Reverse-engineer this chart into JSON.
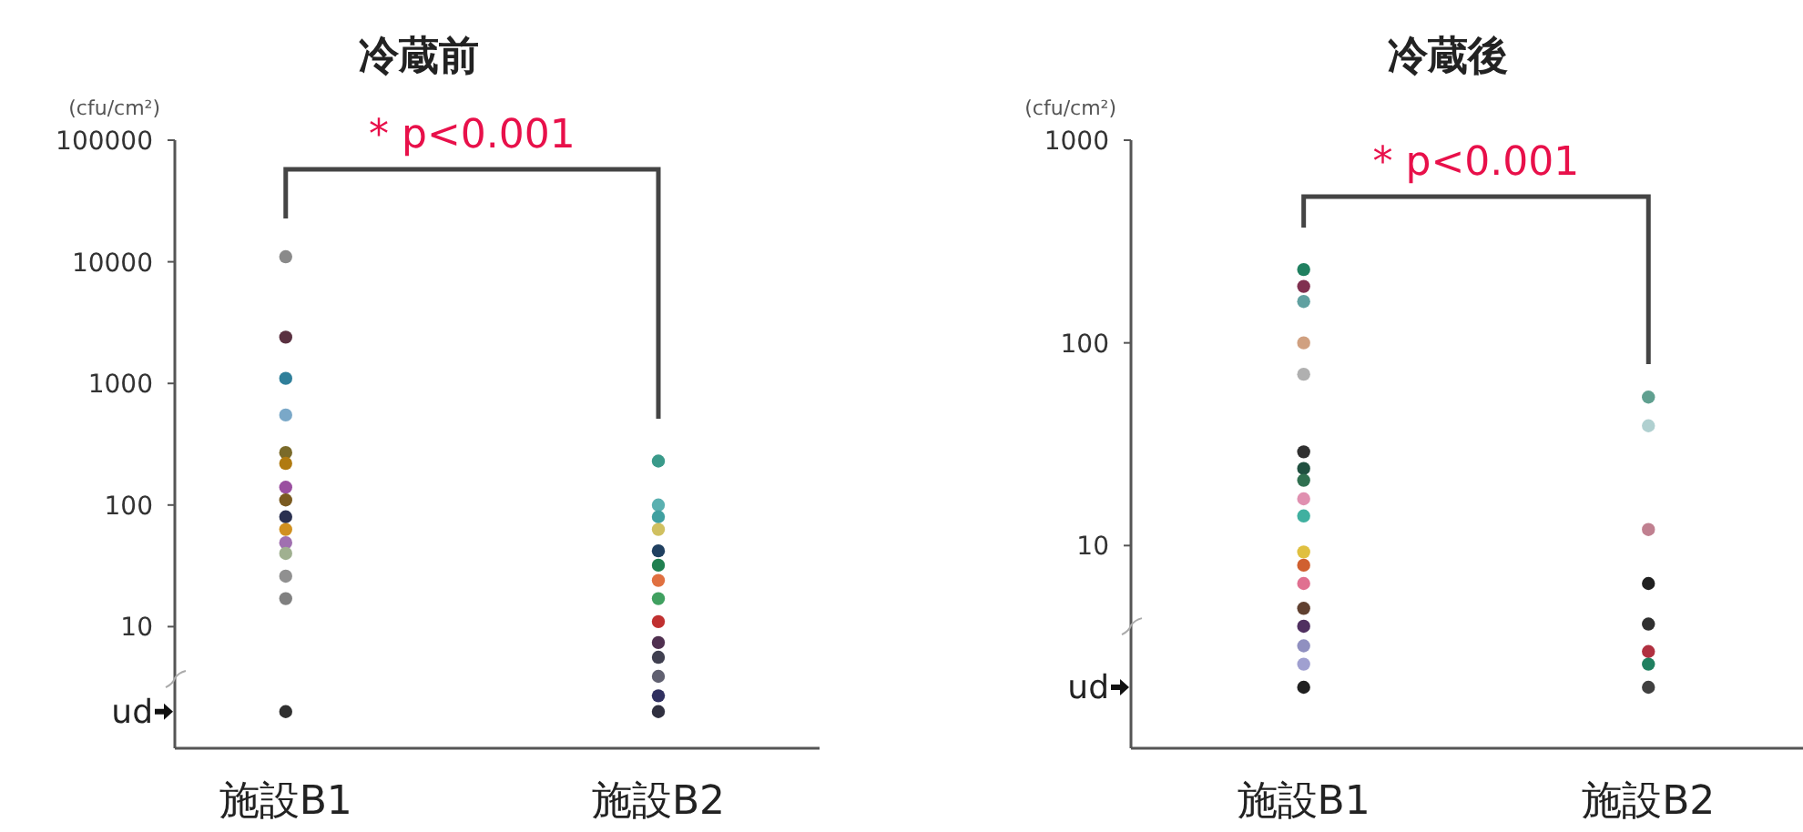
{
  "chart_data": [
    {
      "type": "scatter",
      "title": "冷蔵前",
      "ylabel": "(cfu/cm²)",
      "categories": [
        "施設B1",
        "施設B2"
      ],
      "log": true,
      "ylim": [
        1,
        100000
      ],
      "yticks": [
        {
          "value": 2,
          "label": "ud"
        },
        10,
        100,
        1000,
        10000,
        100000
      ],
      "marker": "circle",
      "grid": false,
      "annotations": [
        "* p<0.001"
      ],
      "series": [
        {
          "x": [
            "施設B1",
            "施設B1",
            "施設B1",
            "施設B1",
            "施設B1",
            "施設B1",
            "施設B1",
            "施設B1",
            "施設B1",
            "施設B1",
            "施設B1",
            "施設B1",
            "施設B1",
            "施設B1",
            "施設B1"
          ],
          "values": [
            11000,
            2400,
            1100,
            550,
            270,
            220,
            140,
            110,
            80,
            63,
            49,
            40,
            26,
            17,
            2
          ],
          "colors": [
            "#8a8a8a",
            "#5a3040",
            "#2f7f9a",
            "#7aa8c8",
            "#7a6a2a",
            "#b07a10",
            "#9a4fa0",
            "#7a5a20",
            "#2a3050",
            "#d09020",
            "#a070b0",
            "#a0b090",
            "#909090",
            "#808080",
            "#303030"
          ]
        },
        {
          "x": [
            "施設B2",
            "施設B2",
            "施設B2",
            "施設B2",
            "施設B2",
            "施設B2",
            "施設B2",
            "施設B2",
            "施設B2",
            "施設B2",
            "施設B2",
            "施設B2",
            "施設B2",
            "施設B2"
          ],
          "values": [
            230,
            100,
            80,
            63,
            42,
            32,
            24,
            17,
            11,
            7.4,
            5.6,
            3.9,
            2.7,
            2
          ],
          "colors": [
            "#3a9a8a",
            "#5ab0b0",
            "#40a0a0",
            "#d0c060",
            "#204060",
            "#208050",
            "#e07040",
            "#40a060",
            "#c03030",
            "#503050",
            "#404050",
            "#606070",
            "#303060",
            "#303040"
          ]
        }
      ]
    },
    {
      "type": "scatter",
      "title": "冷蔵後",
      "ylabel": "(cfu/cm²)",
      "categories": [
        "施設B1",
        "施設B2"
      ],
      "log": true,
      "ylim": [
        1,
        1000
      ],
      "yticks": [
        {
          "value": 2,
          "label": "ud"
        },
        10,
        100,
        1000
      ],
      "marker": "circle",
      "grid": false,
      "annotations": [
        "* p<0.001"
      ],
      "series": [
        {
          "x": [
            "施設B1",
            "施設B1",
            "施設B1",
            "施設B1",
            "施設B1",
            "施設B1",
            "施設B1",
            "施設B1",
            "施設B1",
            "施設B1",
            "施設B1",
            "施設B1",
            "施設B1",
            "施設B1",
            "施設B1",
            "施設B1",
            "施設B1",
            "施設B1"
          ],
          "values": [
            230,
            190,
            160,
            100,
            70,
            29,
            24,
            21,
            17,
            14,
            9.3,
            8,
            6.5,
            4.9,
            4,
            3.2,
            2.6,
            2
          ],
          "colors": [
            "#208060",
            "#803050",
            "#60a0a0",
            "#d0a080",
            "#b0b0b0",
            "#303030",
            "#205040",
            "#307050",
            "#e090b0",
            "#40b0a0",
            "#e0c040",
            "#d06030",
            "#e07090",
            "#604030",
            "#503060",
            "#9090c0",
            "#a0a0d0",
            "#202020"
          ]
        },
        {
          "x": [
            "施設B2",
            "施設B2",
            "施設B2",
            "施設B2",
            "施設B2",
            "施設B2",
            "施設B2",
            "施設B2"
          ],
          "values": [
            54,
            39,
            12,
            6.5,
            4.1,
            3,
            2.6,
            2
          ],
          "colors": [
            "#60a090",
            "#b0d0d0",
            "#c08090",
            "#202020",
            "#303030",
            "#b03040",
            "#208060",
            "#404040"
          ]
        }
      ]
    }
  ]
}
